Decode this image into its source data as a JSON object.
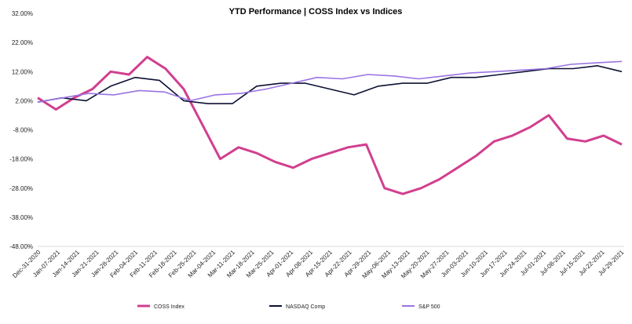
{
  "chart_data": {
    "type": "line",
    "title": "YTD Performance | COSS Index vs Indices",
    "ylim": [
      -48,
      32
    ],
    "y_ticks": [
      "32.00%",
      "22.00%",
      "12.00%",
      "2.00%",
      "-8.00%",
      "-18.00%",
      "-28.00%",
      "-38.00%",
      "-48.00%"
    ],
    "y_tick_values": [
      32,
      22,
      12,
      2,
      -8,
      -18,
      -28,
      -38,
      -48
    ],
    "x_ticks": [
      "Dec-31-2020",
      "Jan-07-2021",
      "Jan-14-2021",
      "Jan-21-2021",
      "Jan-28-2021",
      "Feb-04-2021",
      "Feb-11-2021",
      "Feb-18-2021",
      "Feb-25-2021",
      "Mar-04-2021",
      "Mar-11-2021",
      "Mar-18-2021",
      "Mar-25-2021",
      "Apr-01-2021",
      "Apr-08-2021",
      "Apr-15-2021",
      "Apr-22-2021",
      "Apr-29-2021",
      "May-06-2021",
      "May-13-2021",
      "May-20-2021",
      "May-27-2021",
      "Jun-03-2021",
      "Jun-10-2021",
      "Jun-17-2021",
      "Jun-24-2021",
      "Jul-01-2021",
      "Jul-08-2021",
      "Jul-15-2021",
      "Jul-22-2021",
      "Jul-29-2021"
    ],
    "grid": false,
    "legend_position": "bottom",
    "series": [
      {
        "name": "COSS Index",
        "color": "#d13f8f",
        "values": [
          3,
          -1,
          3,
          6,
          12,
          11,
          17,
          13,
          6,
          -6,
          -18,
          -14,
          -16,
          -19,
          -21,
          -18,
          -16,
          -14,
          -13,
          -28,
          -30,
          -28,
          -25,
          -21,
          -17,
          -12,
          -10,
          -7,
          -3,
          -11,
          -12,
          -10,
          -13
        ]
      },
      {
        "name": "NASDAQ Comp",
        "color": "#0d1033",
        "values": [
          1.5,
          3,
          2,
          7,
          10,
          9,
          2,
          1,
          1,
          7,
          8,
          8,
          6,
          4,
          7,
          8,
          8,
          10,
          10,
          11,
          12,
          13,
          13,
          14,
          12
        ]
      },
      {
        "name": "S&P 500",
        "color": "#9a74e2",
        "values": [
          1.5,
          3,
          4.5,
          4,
          5.5,
          5,
          2,
          4,
          4.5,
          6,
          8,
          10,
          9.5,
          11,
          10.5,
          9.5,
          10.5,
          11.5,
          12,
          12.5,
          13,
          14.5,
          15,
          15.5
        ]
      }
    ]
  }
}
